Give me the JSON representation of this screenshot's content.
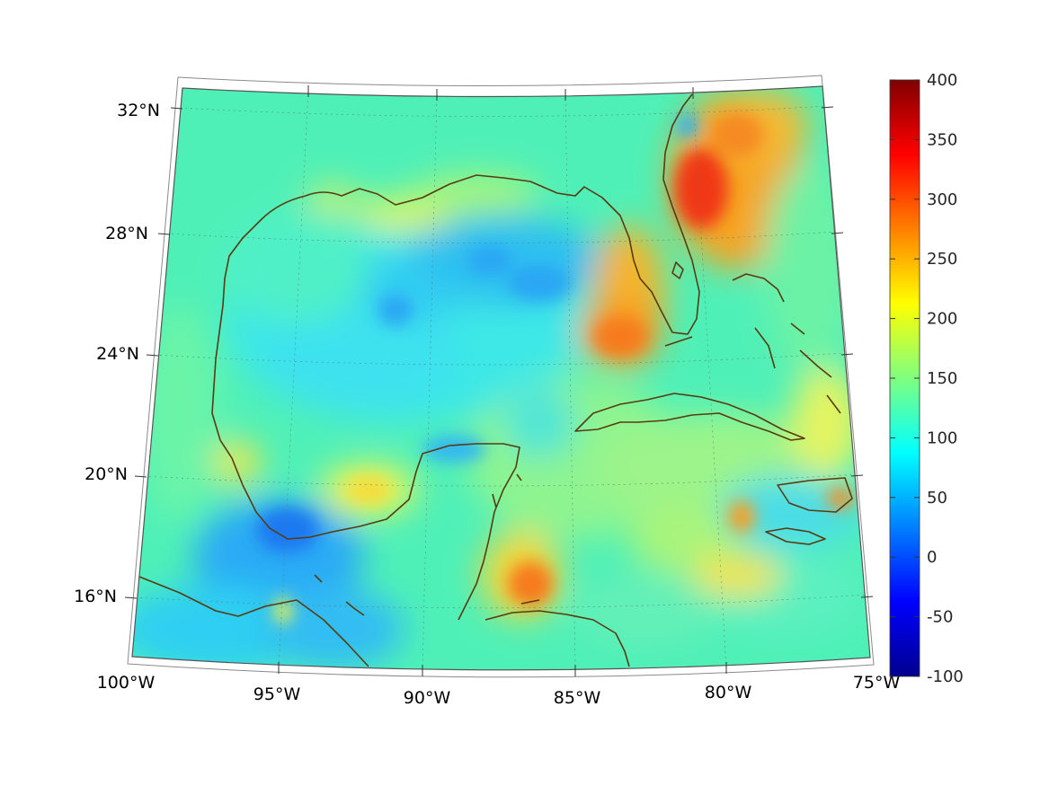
{
  "map": {
    "projection": "conic",
    "grid": true,
    "lat_labels": [
      "32°N",
      "28°N",
      "24°N",
      "20°N",
      "16°N"
    ],
    "lon_labels": [
      "100°W",
      "95°W",
      "90°W",
      "85°W",
      "80°W",
      "75°W"
    ],
    "coastline_color": "#5a3a10",
    "field_palette": "jet"
  },
  "colorbar": {
    "ticks": [
      "400",
      "350",
      "300",
      "250",
      "200",
      "150",
      "100",
      "50",
      "0",
      "-50",
      "-100"
    ],
    "min": -100,
    "max": 400,
    "placement": "right"
  }
}
